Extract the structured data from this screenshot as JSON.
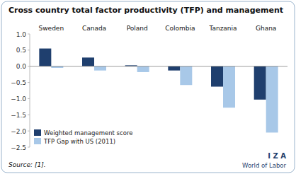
{
  "chart_data": {
    "type": "bar",
    "title": "Cross country total factor productivity (TFP) and management",
    "categories": [
      "Sweden",
      "Canada",
      "Poland",
      "Colombia",
      "Tanzania",
      "Ghana"
    ],
    "series": [
      {
        "name": "Weighted management score",
        "color": "#1F3F6E",
        "values": [
          0.55,
          0.27,
          0.03,
          -0.13,
          -0.63,
          -1.03
        ]
      },
      {
        "name": "TFP Gap with US (2011)",
        "color": "#A8C8E8",
        "values": [
          -0.05,
          -0.13,
          -0.18,
          -0.58,
          -1.28,
          -2.05
        ]
      }
    ],
    "ylim": [
      -2.5,
      1.0
    ],
    "yticks": [
      {
        "value": 1.0,
        "label": "1.0"
      },
      0.5,
      {
        "value": 0.0,
        "label": "0.0"
      },
      {
        "value": -0.5,
        "label": "−0.5"
      },
      {
        "value": -1.0,
        "label": "−1.0"
      },
      {
        "value": -1.5,
        "label": "−1.5"
      },
      {
        "value": -2.0,
        "label": "−2.0"
      },
      {
        "value": -2.5,
        "label": "−2.5"
      }
    ],
    "grid": false,
    "legend": "lower left",
    "source": "Source: [1].",
    "annotations": [
      "I Z A",
      "World of Labor"
    ]
  }
}
